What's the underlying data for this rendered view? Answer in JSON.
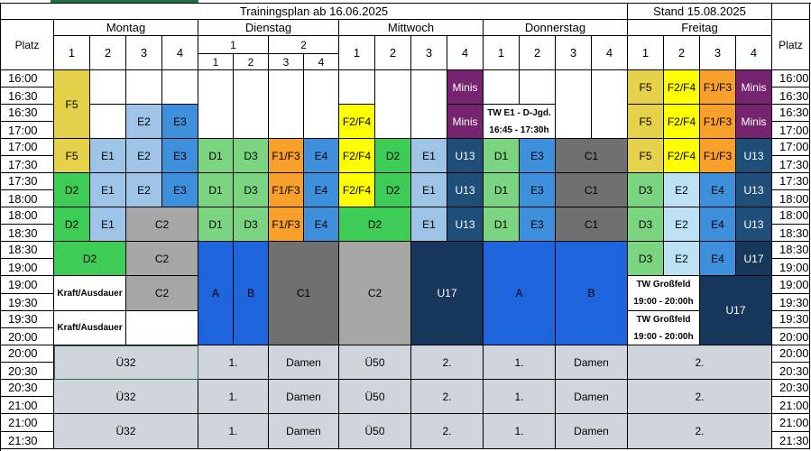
{
  "title": "Trainingsplan ab 16.06.2025",
  "stand": "Stand 15.08.2025",
  "platz_label": "Platz",
  "days": [
    "Montag",
    "Dienstag",
    "Mittwoch",
    "Donnerstag",
    "Freitag"
  ],
  "field_nums": [
    "1",
    "2",
    "3",
    "4"
  ],
  "dienstag_top": [
    "1",
    "2"
  ],
  "times_left": [
    [
      "16:00",
      "16:30"
    ],
    [
      "16:30",
      "17:00"
    ],
    [
      "17:00",
      "17:30"
    ],
    [
      "17:30",
      "18:00"
    ],
    [
      "18:00",
      "18:30"
    ],
    [
      "18:30",
      "19:00"
    ],
    [
      "19:00",
      "19:30"
    ],
    [
      "19:30",
      "20:00"
    ],
    [
      "20:00",
      "20:30"
    ],
    [
      "20:30",
      "21:00"
    ],
    [
      "21:00",
      "21:30"
    ]
  ],
  "times_right": [
    [
      "16:00",
      "16:30"
    ],
    [
      "16:30",
      "17:00"
    ],
    [
      "17:00",
      "17:30"
    ],
    [
      "17:30",
      "18:00"
    ],
    [
      "18:00",
      "18:30"
    ],
    [
      "18:30",
      "19:00"
    ],
    [
      "19:00",
      "19:30"
    ],
    [
      "19:30",
      "20:00"
    ],
    [
      "20:00",
      "20:30"
    ],
    [
      "20:30",
      "21:00"
    ],
    [
      "21:00",
      "21:30"
    ]
  ],
  "colors": {
    "yellow": "#ffff00",
    "gold": "#e5d14a",
    "orange": "#f9a02b",
    "purple": "#76246f",
    "green_light": "#7bd47f",
    "green": "#3dcc55",
    "blue_light": "#9dc3e6",
    "blue_pale": "#bde2f5",
    "blue_mid": "#3e8fdc",
    "blue_bright": "#1e64dd",
    "navy": "#1f4e79",
    "navy_dark": "#16365c",
    "gray": "#a6a6a6",
    "gray_dark": "#707070",
    "gray_light": "#d0d4db",
    "white": "#ffffff"
  },
  "grid": [
    [
      "F5",
      "",
      "",
      "",
      "",
      "",
      "",
      "",
      "",
      "",
      "",
      "Minis",
      "",
      "",
      "",
      "",
      "F5",
      "F2/F4",
      "F1/F3",
      "Minis"
    ],
    [
      "F5",
      "",
      "E2",
      "E3",
      "",
      "",
      "",
      "",
      "F2/F4",
      "",
      "",
      "Minis",
      "TW E1 - D-Jgd.|16:45 - 17:30h",
      "",
      "",
      "",
      "F5",
      "F2/F4",
      "F1/F3",
      "Minis"
    ],
    [
      "F5",
      "E1",
      "E2",
      "E3",
      "D1",
      "D3",
      "F1/F3",
      "E4",
      "F2/F4",
      "D2",
      "E1",
      "U13",
      "D1",
      "E3",
      "C1",
      "",
      "F5",
      "F2/F4",
      "F1/F3",
      "U13"
    ],
    [
      "D2",
      "E1",
      "E2",
      "E3",
      "D1",
      "D3",
      "F1/F3",
      "E4",
      "F2/F4",
      "D2",
      "E1",
      "U13",
      "D1",
      "E3",
      "C1",
      "",
      "D3",
      "E2",
      "E4",
      "U13"
    ],
    [
      "D2",
      "E1",
      "C2",
      "",
      "D1",
      "D3",
      "F1/F3",
      "E4",
      "D2",
      "",
      "E1",
      "U13",
      "D1",
      "E3",
      "C1",
      "",
      "D3",
      "E2",
      "E4",
      "U13"
    ],
    [
      "D2",
      "",
      "C2",
      "",
      "A",
      "B",
      "C1",
      "",
      "C2",
      "",
      "U17",
      "",
      "A",
      "",
      "B",
      "",
      "D3",
      "E2",
      "E4",
      "U17"
    ],
    [
      "Kraft/Ausdauer",
      "",
      "C2",
      "",
      "A",
      "B",
      "C1",
      "",
      "C2",
      "",
      "U17",
      "",
      "A",
      "",
      "B",
      "",
      "TW Großfeld|19:00 - 20:00h",
      "",
      "U17",
      ""
    ],
    [
      "Kraft/Ausdauer",
      "",
      "",
      "",
      "A",
      "B",
      "C1",
      "",
      "C2",
      "",
      "U17",
      "",
      "A",
      "",
      "B",
      "",
      "TW Großfeld|19:00 - 20:00h",
      "",
      "U17",
      ""
    ],
    [
      "Ü32",
      "",
      "",
      "",
      "1.",
      "",
      "Damen",
      "",
      "Ü50",
      "",
      "2.",
      "",
      "1.",
      "",
      "Damen",
      "",
      "2.",
      "",
      "",
      ""
    ],
    [
      "Ü32",
      "",
      "",
      "",
      "1.",
      "",
      "Damen",
      "",
      "Ü50",
      "",
      "2.",
      "",
      "1.",
      "",
      "Damen",
      "",
      "2.",
      "",
      "",
      ""
    ],
    [
      "Ü32",
      "",
      "",
      "",
      "1.",
      "",
      "Damen",
      "",
      "Ü50",
      "",
      "2.",
      "",
      "1.",
      "",
      "Damen",
      "",
      "2.",
      "",
      "",
      ""
    ]
  ]
}
